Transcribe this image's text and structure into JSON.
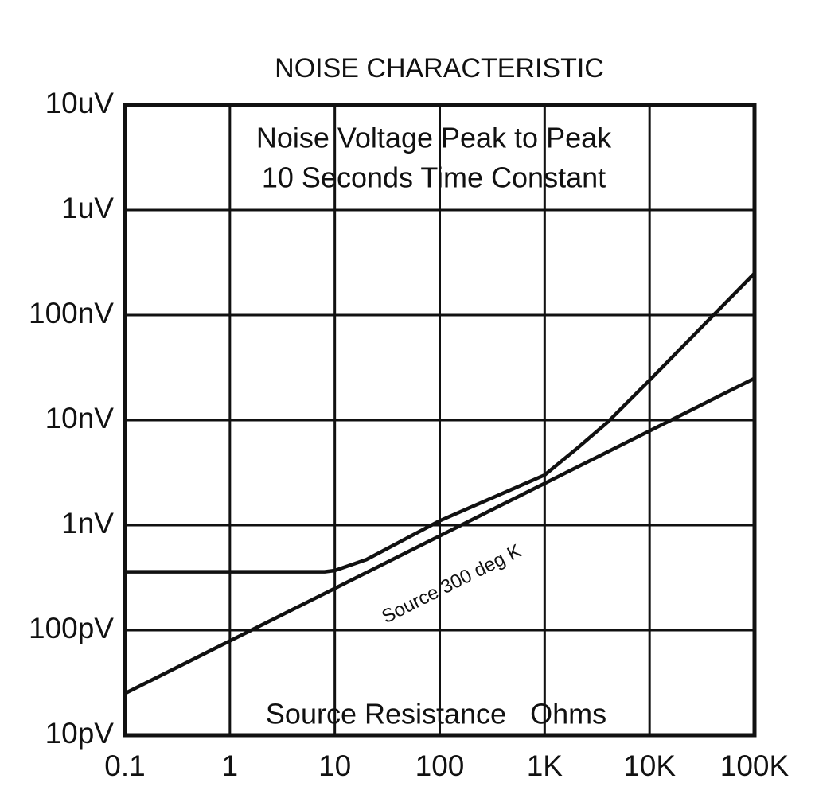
{
  "chart_data": {
    "type": "line",
    "title": "NOISE CHARACTERISTIC",
    "annotations": [
      "Noise Voltage Peak to Peak",
      "10 Seconds Time Constant"
    ],
    "x_label": "Source Resistance   Ohms",
    "xscale": "log",
    "yscale": "log",
    "grid": true,
    "xlim": [
      0.1,
      100000
    ],
    "ylim": [
      1e-11,
      1e-05
    ],
    "xticks": [
      0.1,
      1,
      10,
      100,
      {
        "value": 1000,
        "label": "1K"
      },
      {
        "value": 10000,
        "label": "10K"
      },
      {
        "value": 100000,
        "label": "100K"
      }
    ],
    "yticks": [
      {
        "value": 1e-11,
        "label": "10pV"
      },
      {
        "value": 1e-10,
        "label": "100pV"
      },
      {
        "value": 1e-09,
        "label": "1nV"
      },
      {
        "value": 1e-08,
        "label": "10nV"
      },
      {
        "value": 1e-07,
        "label": "100nV"
      },
      {
        "value": 1e-06,
        "label": "1uV"
      },
      {
        "value": 1e-05,
        "label": "10uV"
      }
    ],
    "series": [
      {
        "name": "Source 300 deg K",
        "color": "#111111",
        "x": [
          0.1,
          1,
          10,
          100,
          1000,
          10000,
          100000
        ],
        "values": [
          2.5e-11,
          7.9e-11,
          2.5e-10,
          7.9e-10,
          2.5e-09,
          7.9e-09,
          2.5e-08
        ]
      },
      {
        "color": "#111111",
        "x": [
          0.1,
          1,
          8,
          10,
          20,
          100,
          1000,
          2000,
          4000,
          10000,
          100000
        ],
        "values": [
          3.6e-10,
          3.6e-10,
          3.6e-10,
          3.7e-10,
          4.7e-10,
          1.1e-09,
          3e-09,
          5.3e-09,
          9.6e-09,
          2.4e-08,
          2.5e-07
        ]
      }
    ]
  }
}
